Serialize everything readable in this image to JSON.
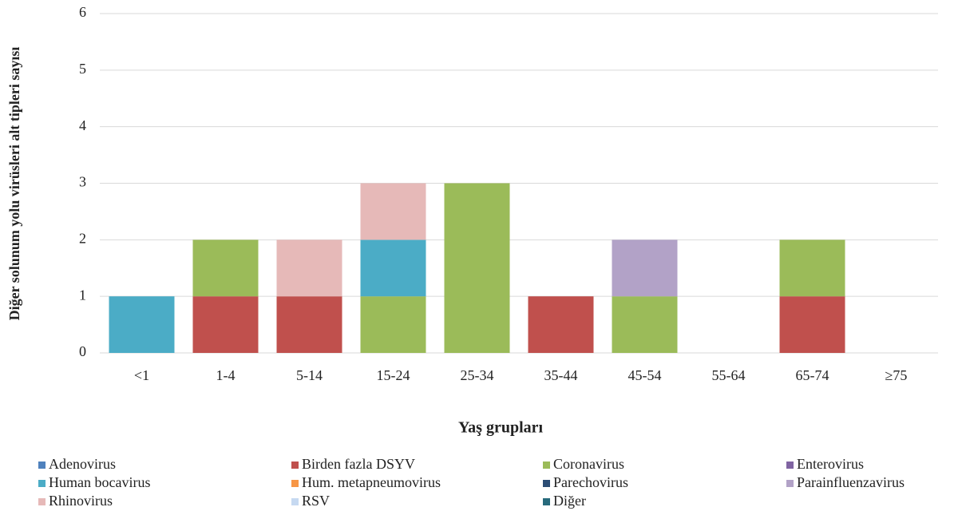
{
  "chart_data": {
    "type": "bar",
    "stacked": true,
    "x_label": "Yaş grupları",
    "y_label": "Diğer solunum yolu virüsleri alt tipleri sayısı",
    "categories": [
      "<1",
      "1-4",
      "5-14",
      "15-24",
      "25-34",
      "35-44",
      "45-54",
      "55-64",
      "65-74",
      "≥75"
    ],
    "series": [
      {
        "name": "Adenovirus",
        "color": "#4f81bd",
        "values": [
          0,
          0,
          0,
          0,
          0,
          0,
          0,
          0,
          0,
          0
        ]
      },
      {
        "name": "Birden fazla DSYV",
        "color": "#c0504d",
        "values": [
          0,
          1,
          1,
          0,
          0,
          1,
          0,
          0,
          1,
          0
        ]
      },
      {
        "name": "Coronavirus",
        "color": "#9bbb59",
        "values": [
          0,
          1,
          0,
          1,
          3,
          0,
          1,
          0,
          1,
          0
        ]
      },
      {
        "name": "Enterovirus",
        "color": "#8064a2",
        "values": [
          0,
          0,
          0,
          0,
          0,
          0,
          0,
          0,
          0,
          0
        ]
      },
      {
        "name": "Human bocavirus",
        "color": "#4bacc6",
        "values": [
          1,
          0,
          0,
          1,
          0,
          0,
          0,
          0,
          0,
          0
        ]
      },
      {
        "name": "Hum. metapneumovirus",
        "color": "#f79646",
        "values": [
          0,
          0,
          0,
          0,
          0,
          0,
          0,
          0,
          0,
          0
        ]
      },
      {
        "name": "Parechovirus",
        "color": "#2c4d75",
        "values": [
          0,
          0,
          0,
          0,
          0,
          0,
          0,
          0,
          0,
          0
        ]
      },
      {
        "name": "Parainfluenzavirus",
        "color": "#b2a2c7",
        "values": [
          0,
          0,
          0,
          0,
          0,
          0,
          1,
          0,
          0,
          0
        ]
      },
      {
        "name": "Rhinovirus",
        "color": "#e6b9b8",
        "values": [
          0,
          0,
          1,
          1,
          0,
          0,
          0,
          0,
          0,
          0
        ]
      },
      {
        "name": "RSV",
        "color": "#c6d9f1",
        "values": [
          0,
          0,
          0,
          0,
          0,
          0,
          0,
          0,
          0,
          0
        ]
      },
      {
        "name": "Diğer",
        "color": "#276a7c",
        "values": [
          0,
          0,
          0,
          0,
          0,
          0,
          0,
          0,
          0,
          0
        ]
      }
    ],
    "ylim": [
      0,
      6
    ],
    "yticks": [
      0,
      1,
      2,
      3,
      4,
      5,
      6
    ],
    "grid": true,
    "legend": "bottom"
  }
}
